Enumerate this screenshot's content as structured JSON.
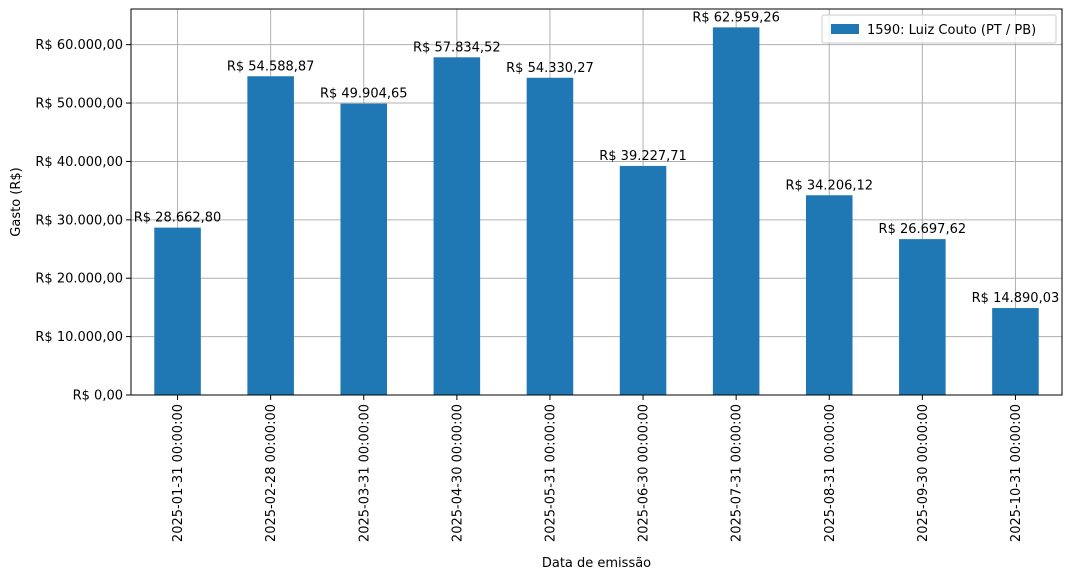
{
  "chart_data": {
    "type": "bar",
    "categories": [
      "2025-01-31 00:00:00",
      "2025-02-28 00:00:00",
      "2025-03-31 00:00:00",
      "2025-04-30 00:00:00",
      "2025-05-31 00:00:00",
      "2025-06-30 00:00:00",
      "2025-07-31 00:00:00",
      "2025-08-31 00:00:00",
      "2025-09-30 00:00:00",
      "2025-10-31 00:00:00"
    ],
    "series": [
      {
        "name": "1590: Luiz Couto (PT / PB)",
        "color": "#1f77b4",
        "values": [
          28662.8,
          54588.87,
          49904.65,
          57834.52,
          54330.27,
          39227.71,
          62959.26,
          34206.12,
          26697.62,
          14890.03
        ],
        "labels": [
          "R$ 28.662,80",
          "R$ 54.588,87",
          "R$ 49.904,65",
          "R$ 57.834,52",
          "R$ 54.330,27",
          "R$ 39.227,71",
          "R$ 62.959,26",
          "R$ 34.206,12",
          "R$ 26.697,62",
          "R$ 14.890,03"
        ]
      }
    ],
    "title": "",
    "xlabel": "Data de emissão",
    "ylabel": "Gasto (R$)",
    "ylim": [
      0,
      66107
    ],
    "yticks": [
      0,
      10000,
      20000,
      30000,
      40000,
      50000,
      60000
    ],
    "ytick_labels": [
      "R$ 0,00",
      "R$ 10.000,00",
      "R$ 20.000,00",
      "R$ 30.000,00",
      "R$ 40.000,00",
      "R$ 50.000,00",
      "R$ 60.000,00"
    ],
    "grid": true,
    "legend_position": "top-right"
  }
}
